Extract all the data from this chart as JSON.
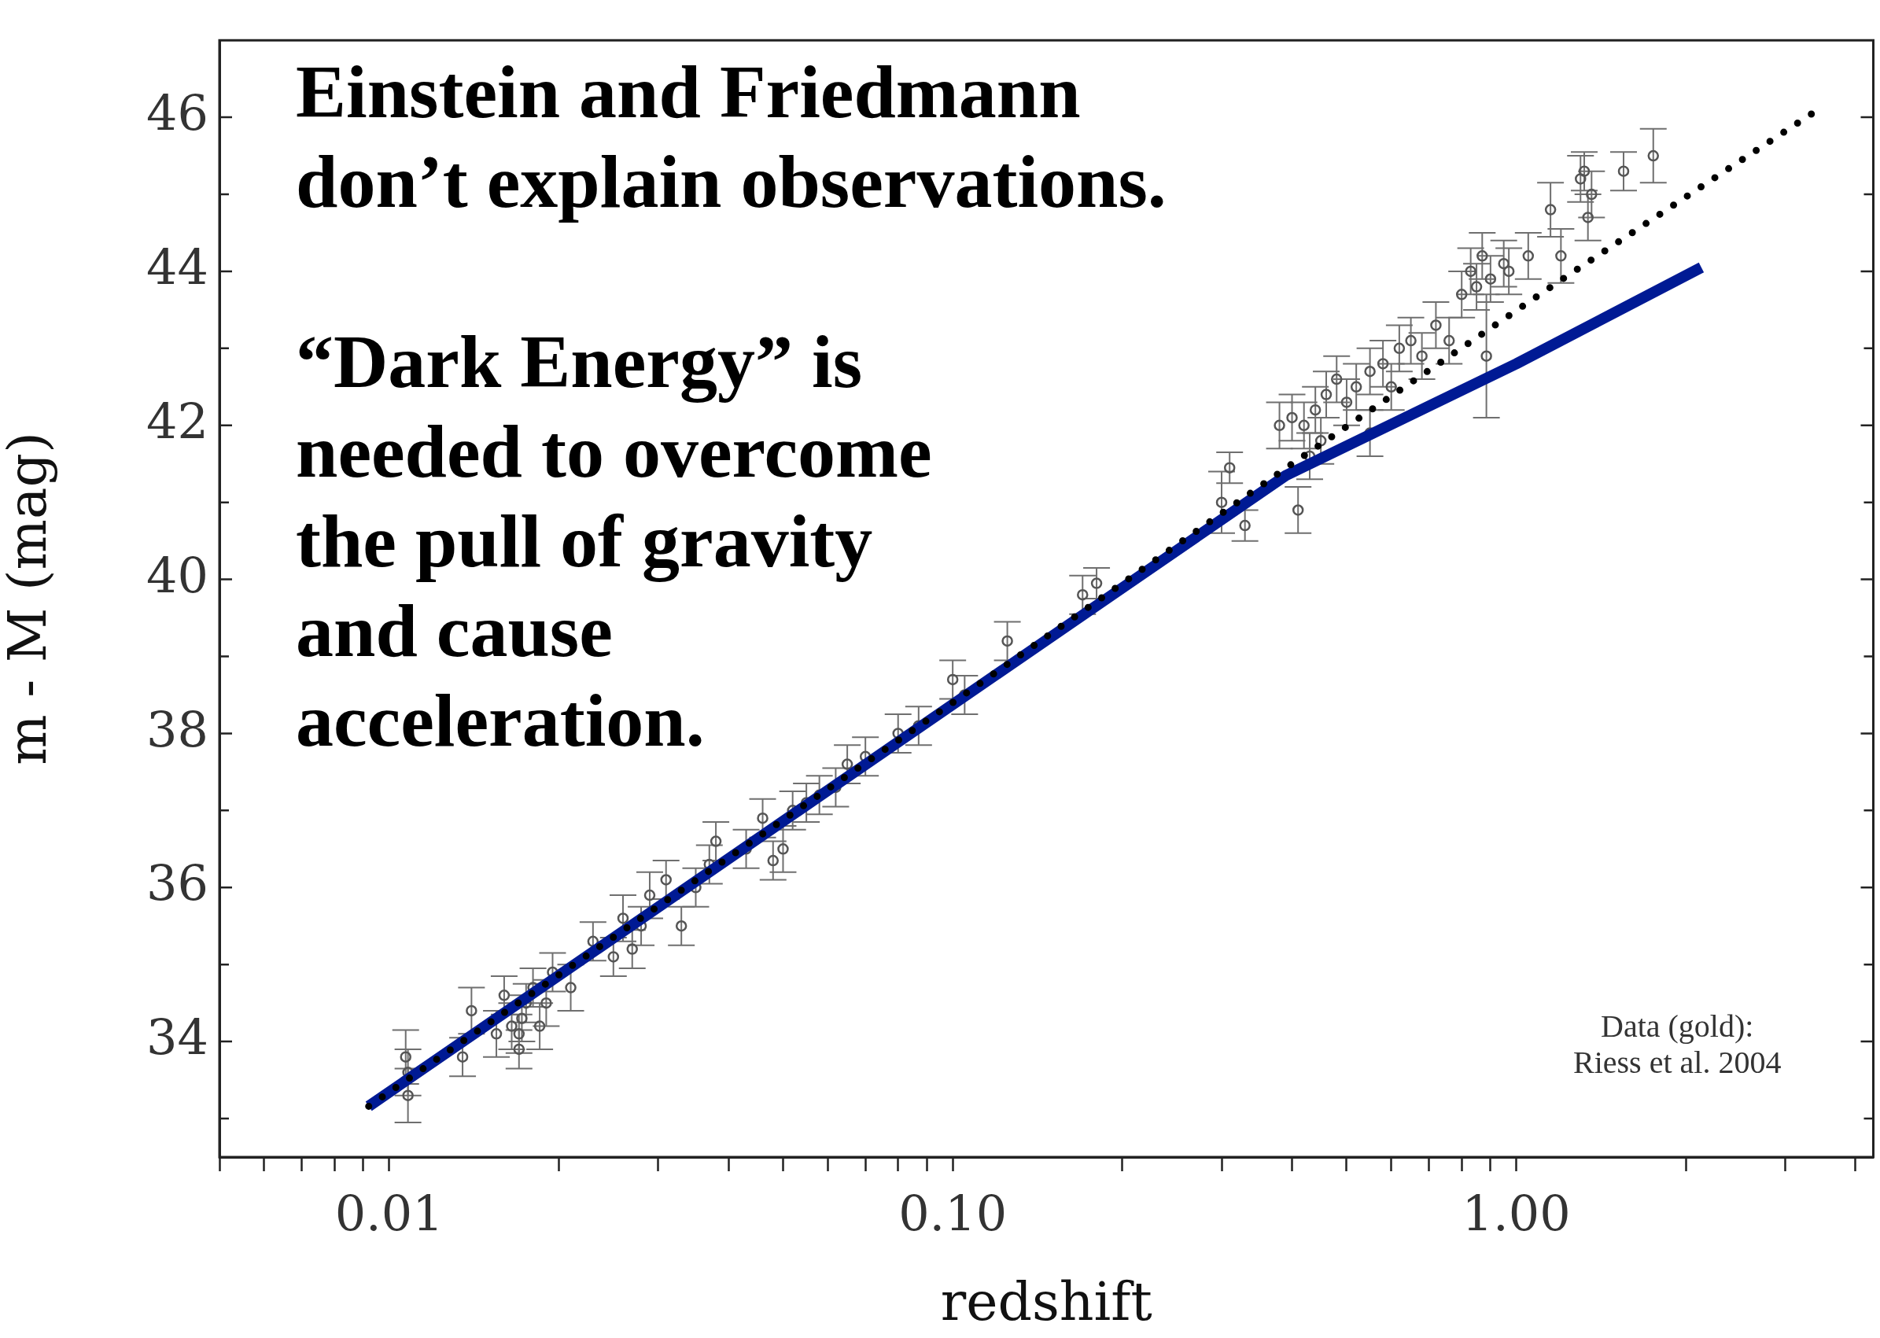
{
  "chart_data": {
    "type": "scatter",
    "xlabel": "redshift",
    "ylabel": "m - M (mag)",
    "log": "x",
    "grid": false,
    "legend": false,
    "xlim": [
      0.005,
      4.3
    ],
    "xticks": [
      {
        "value": 0.005,
        "label": null
      },
      {
        "value": 0.006,
        "label": null
      },
      {
        "value": 0.007,
        "label": null
      },
      {
        "value": 0.008,
        "label": null
      },
      {
        "value": 0.009,
        "label": null
      },
      {
        "value": 0.01,
        "label": "0.01"
      },
      {
        "value": 0.02,
        "label": null
      },
      {
        "value": 0.03,
        "label": null
      },
      {
        "value": 0.04,
        "label": null
      },
      {
        "value": 0.05,
        "label": null
      },
      {
        "value": 0.06,
        "label": null
      },
      {
        "value": 0.07,
        "label": null
      },
      {
        "value": 0.08,
        "label": null
      },
      {
        "value": 0.09,
        "label": null
      },
      {
        "value": 0.1,
        "label": "0.10"
      },
      {
        "value": 0.2,
        "label": null
      },
      {
        "value": 0.3,
        "label": null
      },
      {
        "value": 0.4,
        "label": null
      },
      {
        "value": 0.5,
        "label": null
      },
      {
        "value": 0.6,
        "label": null
      },
      {
        "value": 0.7,
        "label": null
      },
      {
        "value": 0.8,
        "label": null
      },
      {
        "value": 0.9,
        "label": null
      },
      {
        "value": 1,
        "label": "1.00"
      },
      {
        "value": 2,
        "label": null
      },
      {
        "value": 3,
        "label": null
      },
      {
        "value": 4,
        "label": null
      }
    ],
    "ylim": [
      32.5,
      47
    ],
    "yticks": [
      {
        "value": 33,
        "label": null
      },
      34,
      {
        "value": 35,
        "label": null
      },
      36,
      {
        "value": 37,
        "label": null
      },
      38,
      {
        "value": 39,
        "label": null
      },
      40,
      {
        "value": 41,
        "label": null
      },
      42,
      {
        "value": 43,
        "label": null
      },
      44,
      {
        "value": 45,
        "label": null
      },
      46
    ],
    "annotations": [
      "Einstein and Friedmann\ndon’t explain observations.",
      "“Dark Energy” is\nneeded to overcome\nthe pull of gravity\nand cause\nacceleration.",
      "Data (gold):\nRiess et al. 2004"
    ],
    "series": [
      {
        "type": "scatter",
        "color": "#555555",
        "marker": "circle",
        "x": [
          0.0107,
          0.0108,
          0.0108,
          0.0135,
          0.014,
          0.0155,
          0.016,
          0.0165,
          0.017,
          0.017,
          0.0172,
          0.0175,
          0.018,
          0.0185,
          0.019,
          0.0195,
          0.021,
          0.023,
          0.025,
          0.026,
          0.027,
          0.028,
          0.029,
          0.031,
          0.033,
          0.035,
          0.037,
          0.038,
          0.043,
          0.046,
          0.048,
          0.05,
          0.052,
          0.055,
          0.058,
          0.062,
          0.065,
          0.07,
          0.08,
          0.087,
          0.1,
          0.105,
          0.125,
          0.17,
          0.18,
          0.3,
          0.31,
          0.33,
          0.38,
          0.4,
          0.41,
          0.42,
          0.43,
          0.44,
          0.45,
          0.46,
          0.48,
          0.5,
          0.52,
          0.55,
          0.55,
          0.58,
          0.6,
          0.62,
          0.65,
          0.68,
          0.72,
          0.76,
          0.8,
          0.83,
          0.85,
          0.87,
          0.885,
          0.9,
          0.95,
          0.97,
          1.05,
          1.15,
          1.2,
          1.3,
          1.32,
          1.34,
          1.36,
          1.55,
          1.75
        ],
        "values": [
          33.8,
          33.6,
          33.3,
          33.8,
          34.4,
          34.1,
          34.6,
          34.2,
          34.1,
          33.9,
          34.3,
          34.5,
          34.7,
          34.2,
          34.5,
          34.9,
          34.7,
          35.3,
          35.1,
          35.6,
          35.2,
          35.5,
          35.9,
          36.1,
          35.5,
          36.0,
          36.3,
          36.6,
          36.5,
          36.9,
          36.35,
          36.5,
          37.0,
          37.1,
          37.2,
          37.3,
          37.6,
          37.7,
          38.0,
          38.1,
          38.7,
          38.5,
          39.2,
          39.8,
          39.95,
          41.0,
          41.45,
          40.7,
          42.0,
          42.1,
          40.9,
          42.0,
          41.6,
          42.2,
          41.8,
          42.4,
          42.6,
          42.3,
          42.5,
          42.7,
          41.9,
          42.8,
          42.5,
          43.0,
          43.1,
          42.9,
          43.3,
          43.1,
          43.7,
          44.0,
          43.8,
          44.2,
          42.9,
          43.9,
          44.1,
          44.0,
          44.2,
          44.8,
          44.2,
          45.2,
          45.3,
          44.7,
          45.0,
          45.3,
          45.5
        ],
        "errors": [
          0.35,
          0.3,
          0.35,
          0.25,
          0.3,
          0.3,
          0.25,
          0.3,
          0.25,
          0.25,
          0.3,
          0.25,
          0.25,
          0.3,
          0.3,
          0.25,
          0.3,
          0.25,
          0.25,
          0.3,
          0.25,
          0.25,
          0.3,
          0.25,
          0.25,
          0.25,
          0.25,
          0.25,
          0.25,
          0.25,
          0.25,
          0.3,
          0.25,
          0.25,
          0.25,
          0.25,
          0.25,
          0.25,
          0.25,
          0.25,
          0.25,
          0.25,
          0.25,
          0.25,
          0.2,
          0.4,
          0.2,
          0.2,
          0.3,
          0.3,
          0.3,
          0.3,
          0.3,
          0.3,
          0.3,
          0.3,
          0.3,
          0.3,
          0.3,
          0.3,
          0.3,
          0.3,
          0.3,
          0.3,
          0.3,
          0.3,
          0.3,
          0.3,
          0.3,
          0.3,
          0.3,
          0.3,
          0.8,
          0.3,
          0.3,
          0.3,
          0.3,
          0.35,
          0.35,
          0.3,
          0.25,
          0.3,
          0.3,
          0.25,
          0.35
        ]
      },
      {
        "type": "line",
        "color": "#001a94",
        "marker": "none",
        "line_style": "solid",
        "x": [
          0.0092,
          0.39,
          1.0,
          2.13
        ],
        "values": [
          33.16,
          41.35,
          42.8,
          44.05
        ]
      },
      {
        "type": "line",
        "color": "#000000",
        "marker": "none",
        "line_style": "dotted",
        "x": [
          0.0092,
          0.1,
          0.4,
          1.18,
          2.13,
          3.35
        ],
        "values": [
          33.16,
          38.4,
          41.5,
          43.85,
          45.1,
          46.05
        ]
      }
    ]
  }
}
